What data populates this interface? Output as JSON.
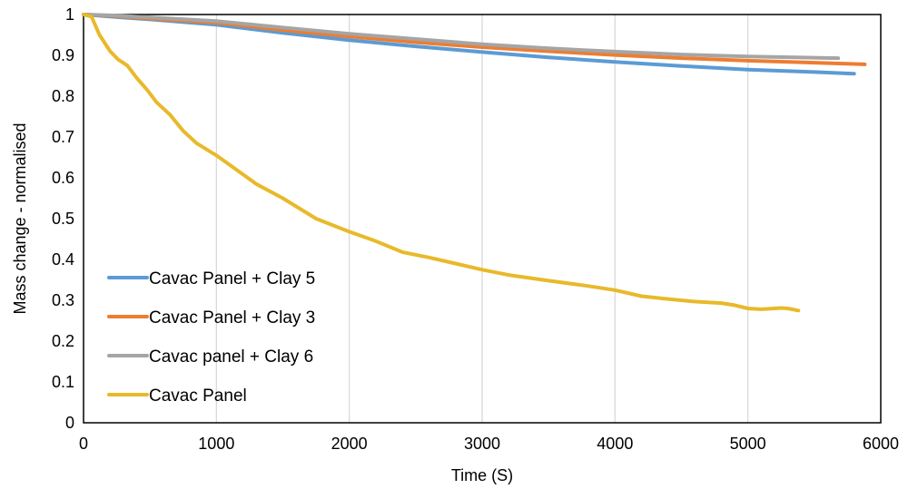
{
  "chart_data": {
    "type": "line",
    "title": "",
    "xlabel": "Time (S)",
    "ylabel": "Mass change - normalised",
    "xlim": [
      0,
      6000
    ],
    "ylim": [
      0,
      1
    ],
    "xticks": [
      0,
      1000,
      2000,
      3000,
      4000,
      5000,
      6000
    ],
    "yticks": [
      0,
      0.1,
      0.2,
      0.3,
      0.4,
      0.5,
      0.6,
      0.7,
      0.8,
      0.9,
      1
    ],
    "xtick_labels": [
      "0",
      "1000",
      "2000",
      "3000",
      "4000",
      "5000",
      "6000"
    ],
    "ytick_labels": [
      "0",
      "0.1",
      "0.2",
      "0.3",
      "0.4",
      "0.5",
      "0.6",
      "0.7",
      "0.8",
      "0.9",
      "1"
    ],
    "grid": "vertical",
    "legend_position": "inside-bottom-left",
    "series": [
      {
        "name": "Cavac Panel + Clay 5",
        "color": "#5b9bd5",
        "points": [
          [
            0,
            1.0
          ],
          [
            200,
            0.995
          ],
          [
            500,
            0.988
          ],
          [
            1000,
            0.975
          ],
          [
            1500,
            0.955
          ],
          [
            2000,
            0.937
          ],
          [
            2500,
            0.922
          ],
          [
            3000,
            0.908
          ],
          [
            3500,
            0.895
          ],
          [
            4000,
            0.884
          ],
          [
            4500,
            0.874
          ],
          [
            5000,
            0.865
          ],
          [
            5500,
            0.859
          ],
          [
            5800,
            0.855
          ]
        ]
      },
      {
        "name": "Cavac Panel + Clay 3",
        "color": "#ed7d31",
        "points": [
          [
            0,
            1.0
          ],
          [
            200,
            0.997
          ],
          [
            500,
            0.99
          ],
          [
            1000,
            0.98
          ],
          [
            1500,
            0.962
          ],
          [
            2000,
            0.946
          ],
          [
            2500,
            0.932
          ],
          [
            3000,
            0.92
          ],
          [
            3500,
            0.91
          ],
          [
            4000,
            0.901
          ],
          [
            4500,
            0.893
          ],
          [
            5000,
            0.887
          ],
          [
            5500,
            0.882
          ],
          [
            5880,
            0.878
          ]
        ]
      },
      {
        "name": "Cavac panel + Clay 6",
        "color": "#a5a5a5",
        "points": [
          [
            0,
            1.0
          ],
          [
            200,
            0.998
          ],
          [
            500,
            0.993
          ],
          [
            1000,
            0.984
          ],
          [
            1500,
            0.968
          ],
          [
            2000,
            0.953
          ],
          [
            2500,
            0.94
          ],
          [
            3000,
            0.927
          ],
          [
            3500,
            0.917
          ],
          [
            4000,
            0.909
          ],
          [
            4500,
            0.902
          ],
          [
            5000,
            0.897
          ],
          [
            5680,
            0.893
          ]
        ]
      },
      {
        "name": "Cavac Panel",
        "color": "#e8b92a",
        "points": [
          [
            0,
            1.0
          ],
          [
            60,
            0.995
          ],
          [
            120,
            0.95
          ],
          [
            200,
            0.91
          ],
          [
            260,
            0.89
          ],
          [
            330,
            0.875
          ],
          [
            400,
            0.845
          ],
          [
            480,
            0.815
          ],
          [
            550,
            0.785
          ],
          [
            650,
            0.755
          ],
          [
            750,
            0.715
          ],
          [
            850,
            0.685
          ],
          [
            1000,
            0.655
          ],
          [
            1150,
            0.62
          ],
          [
            1300,
            0.585
          ],
          [
            1500,
            0.55
          ],
          [
            1750,
            0.5
          ],
          [
            2000,
            0.468
          ],
          [
            2200,
            0.445
          ],
          [
            2400,
            0.418
          ],
          [
            2600,
            0.405
          ],
          [
            2800,
            0.39
          ],
          [
            3000,
            0.375
          ],
          [
            3200,
            0.362
          ],
          [
            3500,
            0.348
          ],
          [
            3800,
            0.335
          ],
          [
            4000,
            0.325
          ],
          [
            4200,
            0.31
          ],
          [
            4400,
            0.303
          ],
          [
            4600,
            0.297
          ],
          [
            4800,
            0.293
          ],
          [
            4900,
            0.288
          ],
          [
            5000,
            0.28
          ],
          [
            5100,
            0.278
          ],
          [
            5250,
            0.281
          ],
          [
            5300,
            0.28
          ],
          [
            5380,
            0.275
          ]
        ]
      }
    ]
  }
}
